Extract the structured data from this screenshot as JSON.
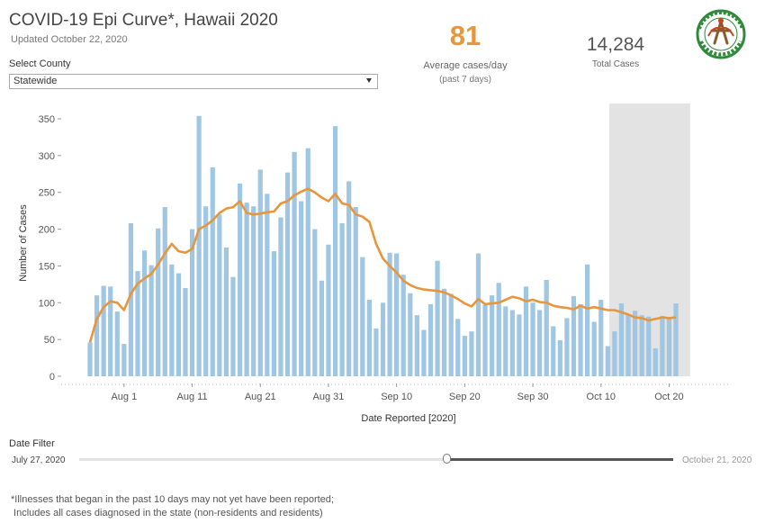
{
  "header": {
    "title": "COVID-19 Epi Curve*, Hawaii 2020",
    "updated": "Updated October 22, 2020"
  },
  "kpi": {
    "avg_value": "81",
    "avg_label": "Average cases/day",
    "avg_sub": "(past 7 days)",
    "total_value": "14,284",
    "total_label": "Total Cases"
  },
  "seal": {
    "icon": "hawaii-department-of-health-seal-icon",
    "text": "HAWAII STATE DEPARTMENT OF HEALTH"
  },
  "county": {
    "label": "Select County",
    "value": "Statewide"
  },
  "date_filter": {
    "label": "Date Filter",
    "start": "July 27, 2020",
    "end": "October 21, 2020",
    "selected_fraction": 0.62
  },
  "footnote": [
    "*Illnesses that began in the past 10 days may not yet have been reported;",
    " Includes all cases diagnosed in the state (non-residents and residents)"
  ],
  "colors": {
    "bar": "#9fc6e2",
    "line": "#e8963c",
    "shade": "#e3e3e3",
    "accent": "#e8963c"
  },
  "chart_data": {
    "type": "bar",
    "xlabel": "Date Reported [2020]",
    "ylabel": "Number of Cases",
    "ylim": [
      0,
      375
    ],
    "yticks": [
      0,
      50,
      100,
      150,
      200,
      250,
      300,
      350
    ],
    "x_start": "2020-07-27",
    "xticks": [
      {
        "label": "Aug 1",
        "date": "2020-08-01"
      },
      {
        "label": "Aug 11",
        "date": "2020-08-11"
      },
      {
        "label": "Aug 21",
        "date": "2020-08-21"
      },
      {
        "label": "Aug 31",
        "date": "2020-08-31"
      },
      {
        "label": "Sep 10",
        "date": "2020-09-10"
      },
      {
        "label": "Sep 20",
        "date": "2020-09-20"
      },
      {
        "label": "Sep 30",
        "date": "2020-09-30"
      },
      {
        "label": "Oct 10",
        "date": "2020-10-10"
      },
      {
        "label": "Oct 20",
        "date": "2020-10-20"
      }
    ],
    "shaded_range": [
      "2020-10-12",
      "2020-10-21"
    ],
    "series": [
      {
        "type": "bar",
        "values": [
          46,
          110,
          123,
          122,
          88,
          44,
          208,
          143,
          171,
          151,
          201,
          230,
          152,
          140,
          120,
          200,
          354,
          231,
          284,
          220,
          175,
          135,
          262,
          236,
          231,
          281,
          248,
          170,
          216,
          277,
          305,
          238,
          310,
          200,
          130,
          179,
          340,
          208,
          265,
          230,
          162,
          104,
          65,
          100,
          168,
          167,
          138,
          113,
          83,
          63,
          98,
          157,
          119,
          112,
          78,
          55,
          61,
          167,
          97,
          110,
          127,
          95,
          90,
          84,
          122,
          100,
          90,
          131,
          68,
          49,
          79,
          109,
          98,
          152,
          74,
          104,
          41,
          61,
          99,
          83,
          89,
          83,
          81,
          38,
          82,
          78,
          99
        ]
      },
      {
        "type": "line",
        "values": [
          46,
          78,
          94,
          102,
          100,
          90,
          112,
          126,
          133,
          139,
          152,
          167,
          180,
          170,
          168,
          173,
          200,
          205,
          212,
          222,
          228,
          230,
          238,
          222,
          220,
          221,
          223,
          224,
          235,
          238,
          246,
          251,
          255,
          250,
          243,
          238,
          248,
          235,
          233,
          220,
          217,
          210,
          180,
          160,
          150,
          141,
          130,
          124,
          120,
          118,
          117,
          116,
          114,
          110,
          105,
          99,
          95,
          105,
          98,
          99,
          100,
          104,
          108,
          106,
          102,
          104,
          101,
          100,
          96,
          94,
          93,
          91,
          96,
          92,
          94,
          92,
          90,
          90,
          87,
          84,
          80,
          79,
          76,
          78,
          80,
          79,
          80
        ]
      }
    ]
  }
}
